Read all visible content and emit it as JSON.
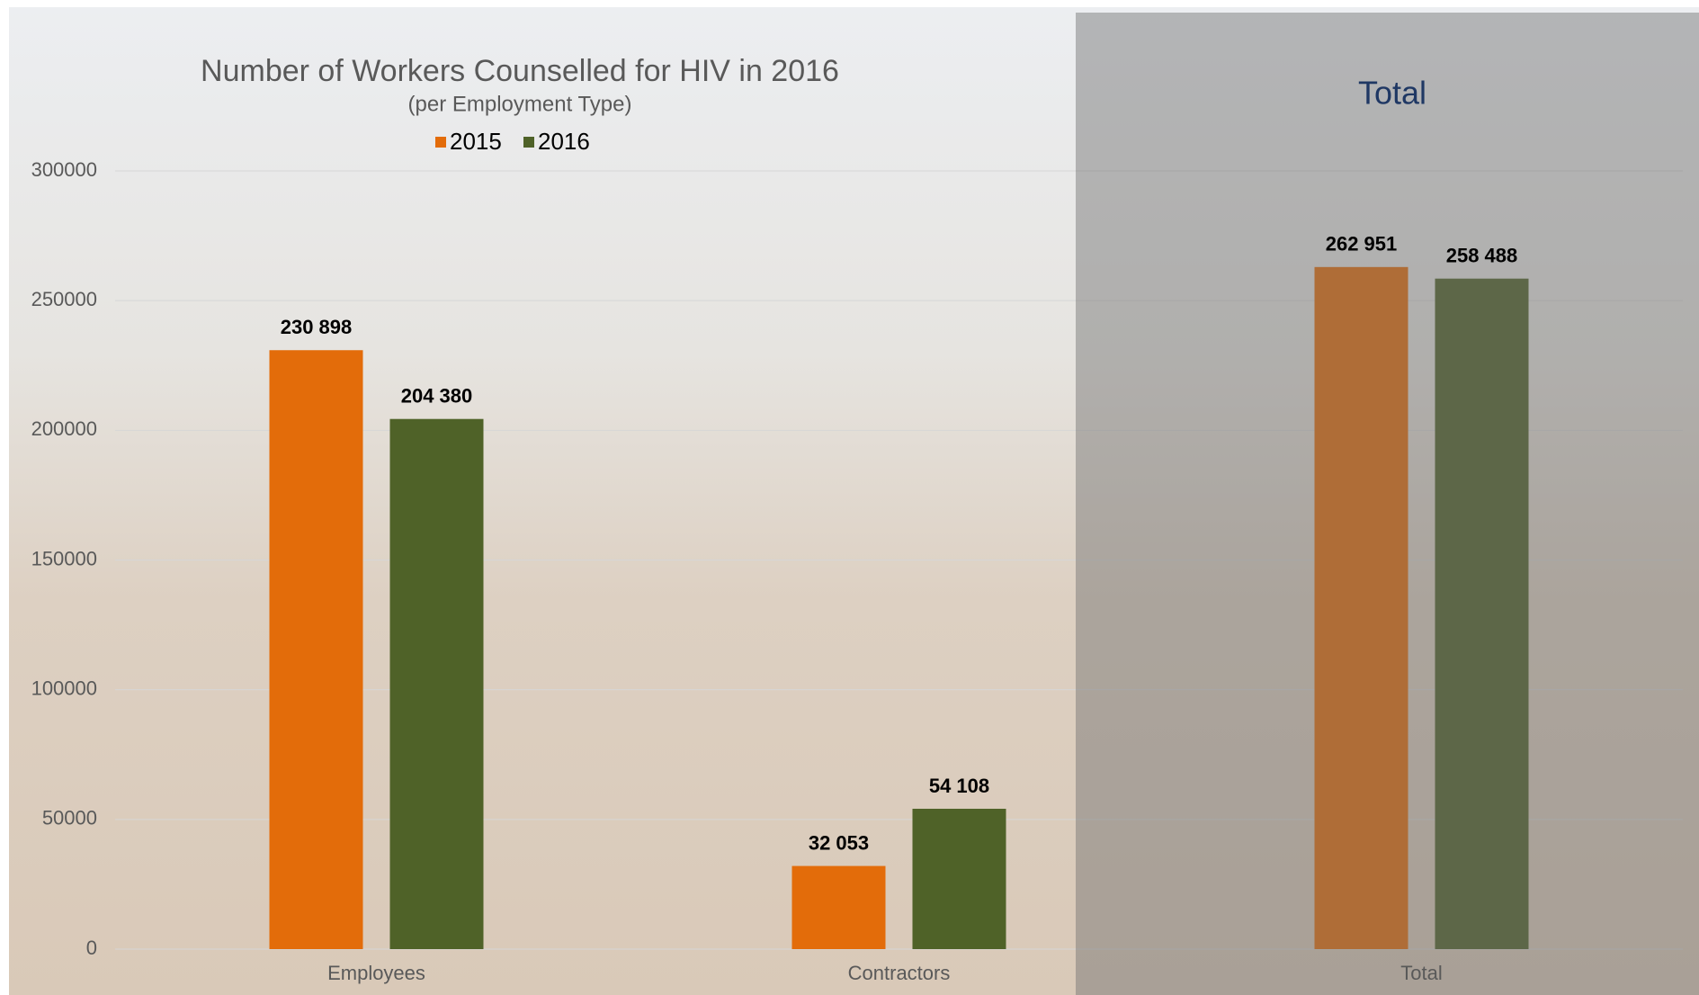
{
  "chart_data": {
    "type": "bar",
    "title": "Number of Workers Counselled  for HIV in 2016",
    "subtitle": "(per Employment  Type)",
    "panel_title": "Total",
    "categories": [
      "Employees",
      "Contractors",
      "Total"
    ],
    "series": [
      {
        "name": "2015",
        "color": "#e36c0a",
        "values": [
          230898,
          32053,
          262951
        ],
        "value_labels": [
          "230 898",
          "32 053",
          "262 951"
        ]
      },
      {
        "name": "2016",
        "color": "#4f6228",
        "values": [
          204380,
          54108,
          258488
        ],
        "value_labels": [
          "204 380",
          "54 108",
          "258 488"
        ]
      }
    ],
    "ylim": [
      0,
      300000
    ],
    "yticks": [
      0,
      50000,
      100000,
      150000,
      200000,
      250000,
      300000
    ],
    "grid": true,
    "legend": "top"
  }
}
